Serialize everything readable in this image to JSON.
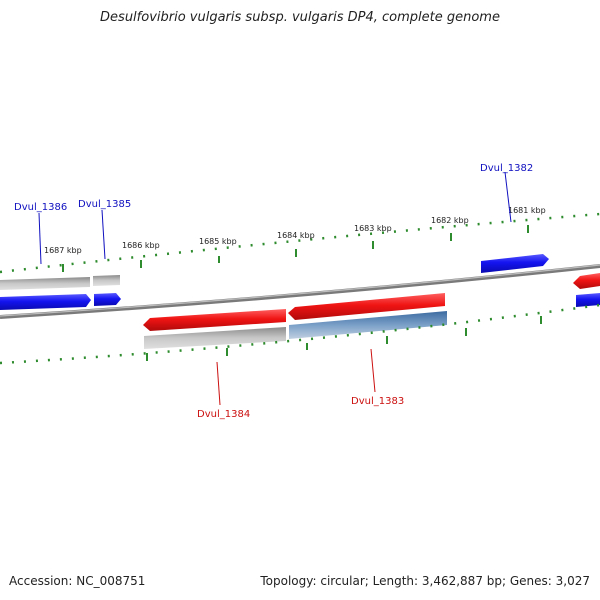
{
  "title": "Desulfovibrio vulgaris subsp. vulgaris DP4, complete genome",
  "footer": {
    "accession": "Accession: NC_008751",
    "summary": "Topology: circular; Length: 3,462,887 bp; Genes: 3,027"
  },
  "colors": {
    "forward_gene": "#1a1aee",
    "reverse_gene": "#ee1a1a",
    "gene_label_forward": "#1010c0",
    "gene_label_reverse": "#cc1010",
    "backbone": "#7a7a7a",
    "tick": "#2e8b2e",
    "cds_reverse_bar": "#4f7fb0"
  },
  "ruler_labels": [
    "1687 kbp",
    "1686 kbp",
    "1685 kbp",
    "1684 kbp",
    "1683 kbp",
    "1682 kbp",
    "1681 kbp"
  ],
  "genes": [
    {
      "name": "Dvul_1386",
      "strand": "forward"
    },
    {
      "name": "Dvul_1385",
      "strand": "forward"
    },
    {
      "name": "Dvul_1384",
      "strand": "reverse"
    },
    {
      "name": "Dvul_1383",
      "strand": "reverse"
    },
    {
      "name": "Dvul_1382",
      "strand": "forward"
    }
  ]
}
